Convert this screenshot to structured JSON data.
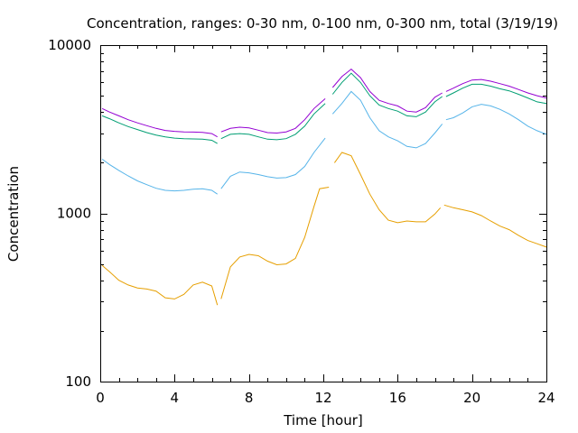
{
  "chart_data": {
    "type": "line",
    "title": "Concentration, ranges: 0-30 nm, 0-100 nm, 0-300 nm, total (3/19/19)",
    "xlabel": "Time [hour]",
    "ylabel": "Concentration",
    "xlim": [
      0,
      24
    ],
    "ylim": [
      100,
      10000
    ],
    "yscale": "log",
    "grid": false,
    "legend": "none",
    "x_ticks": [
      {
        "value": 0,
        "label": "0"
      },
      {
        "value": 4,
        "label": "4"
      },
      {
        "value": 8,
        "label": "8"
      },
      {
        "value": 12,
        "label": "12"
      },
      {
        "value": 16,
        "label": "16"
      },
      {
        "value": 20,
        "label": "20"
      },
      {
        "value": 24,
        "label": "24"
      }
    ],
    "y_ticks": [
      {
        "value": 100,
        "label": "100"
      },
      {
        "value": 1000,
        "label": "1000"
      },
      {
        "value": 10000,
        "label": "10000"
      }
    ],
    "series": [
      {
        "color": "#e69f00",
        "segments": [
          [
            [
              0.1,
              490
            ],
            [
              0.5,
              450
            ],
            [
              1,
              400
            ],
            [
              1.5,
              375
            ],
            [
              2,
              360
            ],
            [
              2.5,
              355
            ],
            [
              3,
              345
            ],
            [
              3.5,
              315
            ],
            [
              4,
              310
            ],
            [
              4.5,
              330
            ],
            [
              5,
              375
            ],
            [
              5.5,
              390
            ],
            [
              6,
              370
            ],
            [
              6.3,
              285
            ]
          ],
          [
            [
              6.5,
              310
            ],
            [
              7,
              480
            ],
            [
              7.5,
              550
            ],
            [
              8,
              570
            ],
            [
              8.5,
              560
            ],
            [
              9,
              520
            ],
            [
              9.5,
              495
            ],
            [
              10,
              500
            ],
            [
              10.5,
              540
            ],
            [
              11,
              720
            ],
            [
              11.5,
              1100
            ],
            [
              11.8,
              1400
            ],
            [
              12.3,
              1430
            ]
          ],
          [
            [
              12.6,
              2000
            ],
            [
              13,
              2300
            ],
            [
              13.5,
              2200
            ],
            [
              14,
              1700
            ],
            [
              14.5,
              1300
            ],
            [
              15,
              1050
            ],
            [
              15.5,
              910
            ],
            [
              16,
              880
            ],
            [
              16.5,
              900
            ],
            [
              17,
              890
            ],
            [
              17.5,
              890
            ],
            [
              18,
              990
            ],
            [
              18.3,
              1080
            ]
          ],
          [
            [
              18.5,
              1120
            ],
            [
              19,
              1080
            ],
            [
              19.5,
              1050
            ],
            [
              20,
              1020
            ],
            [
              20.5,
              970
            ],
            [
              21,
              900
            ],
            [
              21.5,
              840
            ],
            [
              22,
              800
            ],
            [
              22.5,
              740
            ],
            [
              23,
              690
            ],
            [
              23.5,
              660
            ],
            [
              24,
              630
            ]
          ]
        ]
      },
      {
        "color": "#56b4e9",
        "segments": [
          [
            [
              0.1,
              2100
            ],
            [
              0.5,
              1950
            ],
            [
              1,
              1800
            ],
            [
              1.5,
              1670
            ],
            [
              2,
              1560
            ],
            [
              2.5,
              1480
            ],
            [
              3,
              1410
            ],
            [
              3.5,
              1370
            ],
            [
              4,
              1360
            ],
            [
              4.5,
              1370
            ],
            [
              5,
              1390
            ],
            [
              5.5,
              1400
            ],
            [
              6,
              1370
            ],
            [
              6.3,
              1300
            ]
          ],
          [
            [
              6.5,
              1400
            ],
            [
              7,
              1660
            ],
            [
              7.5,
              1760
            ],
            [
              8,
              1740
            ],
            [
              8.5,
              1700
            ],
            [
              9,
              1650
            ],
            [
              9.5,
              1620
            ],
            [
              10,
              1630
            ],
            [
              10.5,
              1700
            ],
            [
              11,
              1900
            ],
            [
              11.5,
              2300
            ],
            [
              12.1,
              2800
            ]
          ],
          [
            [
              12.5,
              3900
            ],
            [
              13,
              4500
            ],
            [
              13.5,
              5300
            ],
            [
              14,
              4700
            ],
            [
              14.5,
              3700
            ],
            [
              15,
              3100
            ],
            [
              15.5,
              2850
            ],
            [
              16,
              2700
            ],
            [
              16.5,
              2500
            ],
            [
              17,
              2450
            ],
            [
              17.5,
              2600
            ],
            [
              18,
              3000
            ],
            [
              18.4,
              3400
            ]
          ],
          [
            [
              18.6,
              3600
            ],
            [
              19,
              3700
            ],
            [
              19.5,
              3950
            ],
            [
              20,
              4300
            ],
            [
              20.5,
              4450
            ],
            [
              21,
              4350
            ],
            [
              21.5,
              4150
            ],
            [
              22,
              3900
            ],
            [
              22.5,
              3600
            ],
            [
              23,
              3300
            ],
            [
              23.5,
              3100
            ],
            [
              24,
              2950
            ]
          ]
        ]
      },
      {
        "color": "#009e73",
        "segments": [
          [
            [
              0.1,
              3800
            ],
            [
              0.5,
              3650
            ],
            [
              1,
              3450
            ],
            [
              1.5,
              3280
            ],
            [
              2,
              3150
            ],
            [
              2.5,
              3020
            ],
            [
              3,
              2920
            ],
            [
              3.5,
              2850
            ],
            [
              4,
              2800
            ],
            [
              4.5,
              2780
            ],
            [
              5,
              2770
            ],
            [
              5.5,
              2760
            ],
            [
              6,
              2720
            ],
            [
              6.3,
              2600
            ]
          ],
          [
            [
              6.5,
              2780
            ],
            [
              7,
              2950
            ],
            [
              7.5,
              2980
            ],
            [
              8,
              2950
            ],
            [
              8.5,
              2850
            ],
            [
              9,
              2760
            ],
            [
              9.5,
              2740
            ],
            [
              10,
              2780
            ],
            [
              10.5,
              2950
            ],
            [
              11,
              3300
            ],
            [
              11.5,
              3900
            ],
            [
              12.1,
              4500
            ]
          ],
          [
            [
              12.5,
              5100
            ],
            [
              13,
              6000
            ],
            [
              13.5,
              6800
            ],
            [
              14,
              6000
            ],
            [
              14.5,
              5000
            ],
            [
              15,
              4400
            ],
            [
              15.5,
              4200
            ],
            [
              16,
              4050
            ],
            [
              16.5,
              3800
            ],
            [
              17,
              3750
            ],
            [
              17.5,
              4000
            ],
            [
              18,
              4600
            ],
            [
              18.4,
              4950
            ]
          ],
          [
            [
              18.6,
              4950
            ],
            [
              19,
              5200
            ],
            [
              19.5,
              5550
            ],
            [
              20,
              5850
            ],
            [
              20.5,
              5850
            ],
            [
              21,
              5700
            ],
            [
              21.5,
              5500
            ],
            [
              22,
              5350
            ],
            [
              22.5,
              5100
            ],
            [
              23,
              4850
            ],
            [
              23.5,
              4600
            ],
            [
              24,
              4500
            ]
          ]
        ]
      },
      {
        "color": "#9400d3",
        "segments": [
          [
            [
              0.1,
              4200
            ],
            [
              0.5,
              4000
            ],
            [
              1,
              3800
            ],
            [
              1.5,
              3600
            ],
            [
              2,
              3450
            ],
            [
              2.5,
              3320
            ],
            [
              3,
              3200
            ],
            [
              3.5,
              3110
            ],
            [
              4,
              3070
            ],
            [
              4.5,
              3050
            ],
            [
              5,
              3040
            ],
            [
              5.5,
              3030
            ],
            [
              6,
              2980
            ],
            [
              6.3,
              2850
            ]
          ],
          [
            [
              6.5,
              3050
            ],
            [
              7,
              3200
            ],
            [
              7.5,
              3250
            ],
            [
              8,
              3220
            ],
            [
              8.5,
              3120
            ],
            [
              9,
              3020
            ],
            [
              9.5,
              3000
            ],
            [
              10,
              3050
            ],
            [
              10.5,
              3200
            ],
            [
              11,
              3600
            ],
            [
              11.5,
              4200
            ],
            [
              12.1,
              4800
            ]
          ],
          [
            [
              12.5,
              5600
            ],
            [
              13,
              6500
            ],
            [
              13.5,
              7200
            ],
            [
              14,
              6400
            ],
            [
              14.5,
              5300
            ],
            [
              15,
              4700
            ],
            [
              15.5,
              4500
            ],
            [
              16,
              4350
            ],
            [
              16.5,
              4050
            ],
            [
              17,
              4000
            ],
            [
              17.5,
              4250
            ],
            [
              18,
              4900
            ],
            [
              18.4,
              5200
            ]
          ],
          [
            [
              18.6,
              5300
            ],
            [
              19,
              5550
            ],
            [
              19.5,
              5900
            ],
            [
              20,
              6200
            ],
            [
              20.5,
              6250
            ],
            [
              21,
              6100
            ],
            [
              21.5,
              5900
            ],
            [
              22,
              5700
            ],
            [
              22.5,
              5450
            ],
            [
              23,
              5200
            ],
            [
              23.5,
              5000
            ],
            [
              24,
              4850
            ]
          ]
        ]
      }
    ]
  }
}
